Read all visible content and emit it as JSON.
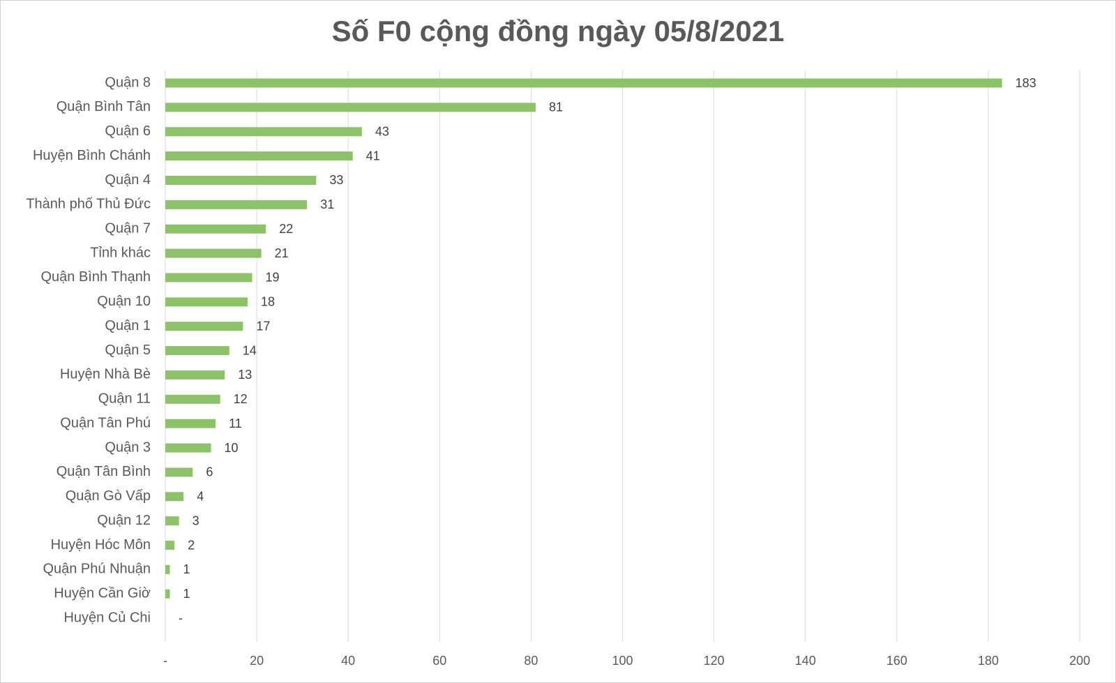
{
  "chart_data": {
    "type": "bar",
    "orientation": "horizontal",
    "title": "Số F0 cộng đồng ngày 05/8/2021",
    "categories": [
      "Quận 8",
      "Quận Bình Tân",
      "Quận 6",
      "Huyện Bình Chánh",
      "Quận 4",
      "Thành phố Thủ Đức",
      "Quận 7",
      "Tỉnh khác",
      "Quận Bình Thạnh",
      "Quận 10",
      "Quận 1",
      "Quận 5",
      "Huyện Nhà Bè",
      "Quận 11",
      "Quận Tân Phú",
      "Quận 3",
      "Quận Tân Bình",
      "Quận Gò Vấp",
      "Quận 12",
      "Huyện Hóc Môn",
      "Quận Phú Nhuận",
      "Huyện Cần Giờ",
      "Huyện Củ Chi"
    ],
    "values": [
      183,
      81,
      43,
      41,
      33,
      31,
      22,
      21,
      19,
      18,
      17,
      14,
      13,
      12,
      11,
      10,
      6,
      4,
      3,
      2,
      1,
      1,
      0
    ],
    "value_labels": [
      "183",
      "81",
      "43",
      "41",
      "33",
      "31",
      "22",
      "21",
      "19",
      "18",
      "17",
      "14",
      "13",
      "12",
      "11",
      "10",
      "6",
      "4",
      "3",
      "2",
      "1",
      "1",
      "-"
    ],
    "color": "#8dc26b",
    "xlim": [
      0,
      200
    ],
    "xticks": [
      {
        "value": 0,
        "label": "-"
      },
      20,
      40,
      60,
      80,
      100,
      120,
      140,
      160,
      180,
      200
    ],
    "grid": true
  }
}
